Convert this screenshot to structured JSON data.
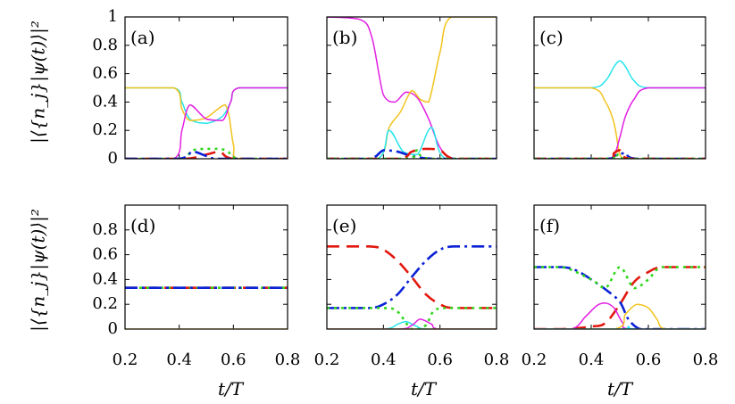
{
  "chart_data": {
    "type": "line",
    "x_range": [
      0.2,
      0.8
    ],
    "y_range": [
      0,
      1
    ],
    "x_ticks": [
      "0.2",
      "0.4",
      "0.6",
      "0.8"
    ],
    "y_ticks": [
      "0",
      "0.2",
      "0.4",
      "0.6",
      "0.8",
      "1"
    ],
    "xlabel": "t/T",
    "ylabel": "|⟨{n_j}|ψ(t)⟩|²",
    "colors": {
      "cyan": "#26e5ec",
      "magenta": "#e31ee3",
      "yellow": "#f2c31c",
      "blue": "#0b22d6",
      "red": "#e2180f",
      "green": "#2fd61a"
    },
    "panels": [
      {
        "label": "(a)",
        "series": [
          {
            "name": "cyan",
            "style": "solid",
            "x": [
              0.2,
              0.38,
              0.41,
              0.44,
              0.5,
              0.56,
              0.59,
              0.62,
              0.8
            ],
            "y": [
              0.5,
              0.5,
              0.4,
              0.28,
              0.25,
              0.3,
              0.4,
              0.5,
              0.5
            ]
          },
          {
            "name": "yellow",
            "style": "solid",
            "x": [
              0.2,
              0.38,
              0.41,
              0.44,
              0.5,
              0.57,
              0.6,
              0.62,
              0.8
            ],
            "y": [
              0.5,
              0.5,
              0.35,
              0.27,
              0.29,
              0.38,
              0.1,
              0.0,
              0.0
            ]
          },
          {
            "name": "magenta",
            "style": "solid",
            "x": [
              0.2,
              0.38,
              0.41,
              0.44,
              0.5,
              0.56,
              0.59,
              0.62,
              0.8
            ],
            "y": [
              0.0,
              0.0,
              0.2,
              0.38,
              0.28,
              0.27,
              0.4,
              0.5,
              0.5
            ]
          },
          {
            "name": "green",
            "style": "dotted",
            "x": [
              0.2,
              0.4,
              0.45,
              0.5,
              0.55,
              0.58,
              0.62,
              0.8
            ],
            "y": [
              0.0,
              0.0,
              0.06,
              0.07,
              0.07,
              0.05,
              0.0,
              0.0
            ]
          },
          {
            "name": "red",
            "style": "dashed",
            "x": [
              0.2,
              0.42,
              0.5,
              0.55,
              0.6,
              0.8
            ],
            "y": [
              0.0,
              0.0,
              0.03,
              0.05,
              0.0,
              0.0
            ]
          },
          {
            "name": "blue",
            "style": "dashdot",
            "x": [
              0.2,
              0.4,
              0.45,
              0.5,
              0.55,
              0.8
            ],
            "y": [
              0.0,
              0.0,
              0.05,
              0.02,
              0.0,
              0.0
            ]
          }
        ]
      },
      {
        "label": "(b)",
        "series": [
          {
            "name": "magenta",
            "style": "solid",
            "x": [
              0.2,
              0.32,
              0.36,
              0.4,
              0.44,
              0.48,
              0.52,
              0.56,
              0.6,
              0.65,
              0.8
            ],
            "y": [
              1.0,
              0.98,
              0.85,
              0.45,
              0.4,
              0.47,
              0.43,
              0.28,
              0.08,
              0.0,
              0.0
            ]
          },
          {
            "name": "yellow",
            "style": "solid",
            "x": [
              0.2,
              0.38,
              0.42,
              0.46,
              0.5,
              0.53,
              0.56,
              0.6,
              0.64,
              0.8
            ],
            "y": [
              0.0,
              0.0,
              0.22,
              0.33,
              0.48,
              0.42,
              0.4,
              0.75,
              1.0,
              1.0
            ]
          },
          {
            "name": "cyan",
            "style": "solid",
            "x": [
              0.2,
              0.38,
              0.42,
              0.47,
              0.52,
              0.57,
              0.62,
              0.8
            ],
            "y": [
              0.0,
              0.0,
              0.2,
              0.05,
              0.03,
              0.22,
              0.0,
              0.0
            ]
          },
          {
            "name": "blue",
            "style": "dashdot",
            "x": [
              0.2,
              0.35,
              0.4,
              0.45,
              0.5,
              0.58,
              0.8
            ],
            "y": [
              0.0,
              0.0,
              0.06,
              0.05,
              0.02,
              0.0,
              0.0
            ]
          },
          {
            "name": "red",
            "style": "dashed",
            "x": [
              0.2,
              0.45,
              0.5,
              0.55,
              0.6,
              0.65,
              0.8
            ],
            "y": [
              0.0,
              0.0,
              0.05,
              0.07,
              0.06,
              0.0,
              0.0
            ]
          },
          {
            "name": "green",
            "style": "dotted",
            "x": [
              0.2,
              0.48,
              0.52,
              0.56,
              0.8
            ],
            "y": [
              0.0,
              0.0,
              0.06,
              0.0,
              0.0
            ]
          }
        ]
      },
      {
        "label": "(c)",
        "series": [
          {
            "name": "cyan",
            "style": "solid",
            "x": [
              0.2,
              0.4,
              0.45,
              0.48,
              0.5,
              0.52,
              0.55,
              0.6,
              0.8
            ],
            "y": [
              0.5,
              0.5,
              0.55,
              0.65,
              0.69,
              0.65,
              0.55,
              0.5,
              0.5
            ]
          },
          {
            "name": "yellow",
            "style": "solid",
            "x": [
              0.2,
              0.4,
              0.45,
              0.48,
              0.5,
              0.52,
              0.56,
              0.8
            ],
            "y": [
              0.5,
              0.5,
              0.4,
              0.25,
              0.03,
              0.0,
              0.0,
              0.0
            ]
          },
          {
            "name": "magenta",
            "style": "solid",
            "x": [
              0.2,
              0.44,
              0.48,
              0.5,
              0.52,
              0.55,
              0.6,
              0.8
            ],
            "y": [
              0.0,
              0.0,
              0.03,
              0.15,
              0.3,
              0.42,
              0.5,
              0.5
            ]
          },
          {
            "name": "blue",
            "style": "dashdot",
            "x": [
              0.2,
              0.45,
              0.48,
              0.52,
              0.56,
              0.8
            ],
            "y": [
              0.0,
              0.0,
              0.02,
              0.04,
              0.0,
              0.0
            ]
          },
          {
            "name": "red",
            "style": "dashed",
            "x": [
              0.2,
              0.45,
              0.48,
              0.5,
              0.54,
              0.8
            ],
            "y": [
              0.0,
              0.0,
              0.04,
              0.06,
              0.0,
              0.0
            ]
          },
          {
            "name": "green",
            "style": "dotted",
            "x": [
              0.2,
              0.46,
              0.49,
              0.52,
              0.8
            ],
            "y": [
              0.0,
              0.0,
              0.03,
              0.0,
              0.0
            ]
          }
        ]
      },
      {
        "label": "(d)",
        "series": [
          {
            "name": "yellow",
            "style": "solid",
            "x": [
              0.2,
              0.8
            ],
            "y": [
              0.0,
              0.0
            ]
          },
          {
            "name": "red",
            "style": "dashed",
            "x": [
              0.2,
              0.8
            ],
            "y": [
              0.333,
              0.333
            ]
          },
          {
            "name": "green",
            "style": "dotted",
            "x": [
              0.2,
              0.8
            ],
            "y": [
              0.333,
              0.333
            ]
          },
          {
            "name": "blue",
            "style": "dashdot",
            "x": [
              0.2,
              0.8
            ],
            "y": [
              0.333,
              0.333
            ]
          }
        ]
      },
      {
        "label": "(e)",
        "series": [
          {
            "name": "red",
            "style": "dashed",
            "x": [
              0.2,
              0.35,
              0.4,
              0.45,
              0.5,
              0.55,
              0.6,
              0.65,
              0.8
            ],
            "y": [
              0.667,
              0.667,
              0.64,
              0.55,
              0.42,
              0.28,
              0.2,
              0.17,
              0.17
            ]
          },
          {
            "name": "blue",
            "style": "dashdot",
            "x": [
              0.2,
              0.35,
              0.4,
              0.45,
              0.5,
              0.55,
              0.6,
              0.65,
              0.8
            ],
            "y": [
              0.17,
              0.17,
              0.2,
              0.28,
              0.42,
              0.55,
              0.64,
              0.667,
              0.667
            ]
          },
          {
            "name": "green",
            "style": "dotted",
            "x": [
              0.2,
              0.4,
              0.45,
              0.5,
              0.55,
              0.6,
              0.8
            ],
            "y": [
              0.17,
              0.17,
              0.14,
              0.0,
              0.03,
              0.17,
              0.17
            ]
          },
          {
            "name": "cyan",
            "style": "solid",
            "x": [
              0.2,
              0.4,
              0.45,
              0.48,
              0.52,
              0.56,
              0.8
            ],
            "y": [
              0.0,
              0.0,
              0.04,
              0.06,
              0.02,
              0.0,
              0.0
            ]
          },
          {
            "name": "magenta",
            "style": "solid",
            "x": [
              0.2,
              0.45,
              0.5,
              0.53,
              0.57,
              0.6,
              0.8
            ],
            "y": [
              0.0,
              0.0,
              0.03,
              0.08,
              0.04,
              0.0,
              0.0
            ]
          },
          {
            "name": "yellow",
            "style": "solid",
            "x": [
              0.2,
              0.8
            ],
            "y": [
              0.0,
              0.0
            ]
          }
        ]
      },
      {
        "label": "(f)",
        "series": [
          {
            "name": "red",
            "style": "dashed",
            "x": [
              0.2,
              0.3,
              0.4,
              0.45,
              0.5,
              0.55,
              0.6,
              0.65,
              0.8
            ],
            "y": [
              0.0,
              0.0,
              0.02,
              0.05,
              0.2,
              0.38,
              0.46,
              0.5,
              0.5
            ]
          },
          {
            "name": "blue",
            "style": "dashdot",
            "x": [
              0.2,
              0.3,
              0.35,
              0.4,
              0.45,
              0.5,
              0.53,
              0.57,
              0.62,
              0.8
            ],
            "y": [
              0.5,
              0.5,
              0.47,
              0.4,
              0.32,
              0.22,
              0.08,
              0.0,
              0.0,
              0.0
            ]
          },
          {
            "name": "green",
            "style": "dotted",
            "x": [
              0.2,
              0.3,
              0.4,
              0.45,
              0.5,
              0.55,
              0.6,
              0.65,
              0.8
            ],
            "y": [
              0.5,
              0.5,
              0.4,
              0.33,
              0.5,
              0.33,
              0.4,
              0.5,
              0.5
            ]
          },
          {
            "name": "magenta",
            "style": "solid",
            "x": [
              0.2,
              0.33,
              0.38,
              0.42,
              0.45,
              0.48,
              0.51,
              0.54,
              0.8
            ],
            "y": [
              0.0,
              0.0,
              0.1,
              0.19,
              0.21,
              0.17,
              0.05,
              0.0,
              0.0
            ]
          },
          {
            "name": "yellow",
            "style": "solid",
            "x": [
              0.2,
              0.48,
              0.52,
              0.56,
              0.6,
              0.63,
              0.66,
              0.8
            ],
            "y": [
              0.0,
              0.0,
              0.12,
              0.2,
              0.17,
              0.08,
              0.0,
              0.0
            ]
          },
          {
            "name": "cyan",
            "style": "solid",
            "x": [
              0.2,
              0.5,
              0.53,
              0.56,
              0.8
            ],
            "y": [
              0.0,
              0.0,
              0.02,
              0.0,
              0.0
            ]
          }
        ]
      }
    ]
  }
}
